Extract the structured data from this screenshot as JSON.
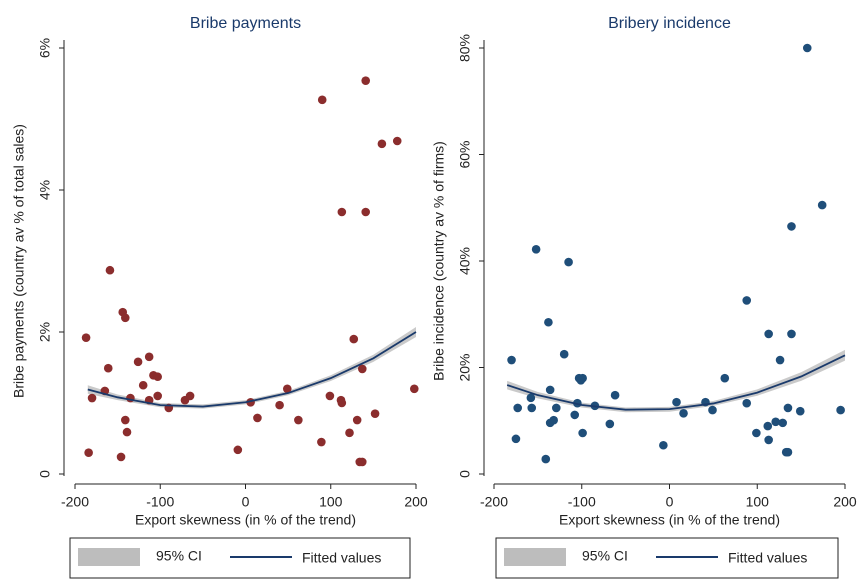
{
  "chart_data": [
    {
      "type": "scatter",
      "title": "Bribe payments",
      "xlabel": "Export skewness (in % of the trend)",
      "ylabel": "Bribe payments (country av % of total sales)",
      "xlim": [
        -200,
        200
      ],
      "ylim": [
        0,
        6
      ],
      "xticks": [
        -200,
        -100,
        0,
        100,
        200
      ],
      "yticks": [
        0,
        {
          "value": 2,
          "label": "2%"
        },
        {
          "value": 4,
          "label": "4%"
        },
        {
          "value": 6,
          "label": "6%"
        }
      ],
      "points": {
        "color": "#8b2d2d",
        "x": [
          -187,
          -180,
          -184,
          -165,
          -161,
          -159,
          -144,
          -141,
          -141,
          -139,
          -146,
          -135,
          -126,
          -120,
          -113,
          -113,
          -108,
          -103,
          -103,
          -90,
          -71,
          -65,
          -9,
          6,
          14,
          40,
          49,
          62,
          89,
          90,
          99,
          112,
          113,
          113,
          122,
          127,
          131,
          134,
          137,
          137,
          141,
          141,
          152,
          160,
          178,
          198
        ],
        "y": [
          1.92,
          1.07,
          0.3,
          1.17,
          1.49,
          2.87,
          2.28,
          2.2,
          0.76,
          0.59,
          0.24,
          1.07,
          1.58,
          1.25,
          1.65,
          1.04,
          1.39,
          1.37,
          1.1,
          0.93,
          1.04,
          1.1,
          0.34,
          1.01,
          0.79,
          0.97,
          1.2,
          0.76,
          0.45,
          5.27,
          1.1,
          1.04,
          1.0,
          3.69,
          0.58,
          1.9,
          0.76,
          0.17,
          0.17,
          1.48,
          3.69,
          5.54,
          0.85,
          4.65,
          4.69,
          1.2
        ]
      },
      "fit_x": [
        -185,
        -150,
        -100,
        -50,
        0,
        50,
        100,
        150,
        200
      ],
      "series": [
        {
          "name": "95% CI",
          "color": "#bdbdbd",
          "lower": [
            1.13,
            1.04,
            0.94,
            0.92,
            0.98,
            1.11,
            1.31,
            1.58,
            1.93
          ],
          "upper": [
            1.25,
            1.12,
            1.0,
            0.98,
            1.04,
            1.17,
            1.39,
            1.68,
            2.07
          ]
        },
        {
          "name": "Fitted values",
          "color": "#1a3a6b",
          "values": [
            1.19,
            1.08,
            0.97,
            0.95,
            1.01,
            1.14,
            1.35,
            1.63,
            2.0
          ]
        }
      ]
    },
    {
      "type": "scatter",
      "title": "Bribery incidence",
      "xlabel": "Export skewness (in % of the trend)",
      "ylabel": "Bribe incidence (country av % of firms)",
      "xlim": [
        -200,
        200
      ],
      "ylim": [
        0,
        80
      ],
      "xticks": [
        -200,
        -100,
        0,
        100,
        200
      ],
      "yticks": [
        0,
        {
          "value": 20,
          "label": "20%"
        },
        {
          "value": 40,
          "label": "40%"
        },
        {
          "value": 60,
          "label": "60%"
        },
        {
          "value": 80,
          "label": "80%"
        }
      ],
      "points": {
        "color": "#1f4e79",
        "x": [
          -180,
          -175,
          -173,
          -158,
          -157,
          -152,
          -141,
          -138,
          -136,
          -136,
          -132,
          -129,
          -120,
          -115,
          -108,
          -105,
          -103,
          -99,
          -101,
          -99,
          -85,
          -68,
          -62,
          -7,
          8,
          16,
          41,
          49,
          63,
          88,
          88,
          99,
          112,
          113,
          113,
          121,
          126,
          129,
          133,
          135,
          135,
          139,
          139,
          149,
          157,
          174,
          195
        ],
        "y": [
          21.4,
          6.6,
          12.4,
          14.3,
          12.4,
          42.2,
          2.8,
          28.5,
          15.8,
          9.6,
          10.1,
          12.4,
          22.5,
          39.8,
          11.1,
          13.3,
          18.0,
          18.0,
          17.6,
          7.7,
          12.8,
          9.4,
          14.8,
          5.4,
          13.5,
          11.4,
          13.5,
          12.0,
          18.0,
          32.6,
          13.3,
          7.7,
          9.0,
          26.3,
          6.4,
          9.8,
          21.4,
          9.6,
          4.1,
          12.4,
          4.1,
          46.5,
          26.3,
          11.8,
          80,
          50.5,
          12.0
        ]
      },
      "fit_x": [
        -185,
        -150,
        -100,
        -50,
        0,
        50,
        100,
        150,
        200
      ],
      "series": [
        {
          "name": "95% CI",
          "color": "#bdbdbd",
          "lower": [
            15.9,
            14.2,
            12.5,
            11.6,
            11.7,
            12.8,
            14.7,
            17.5,
            21.3
          ],
          "upper": [
            17.5,
            15.4,
            13.4,
            12.5,
            12.6,
            13.7,
            15.9,
            19.1,
            23.3
          ]
        },
        {
          "name": "Fitted values",
          "color": "#1a3a6b",
          "values": [
            16.7,
            14.8,
            12.95,
            12.08,
            12.18,
            13.25,
            15.29,
            18.31,
            22.3
          ]
        }
      ]
    }
  ]
}
